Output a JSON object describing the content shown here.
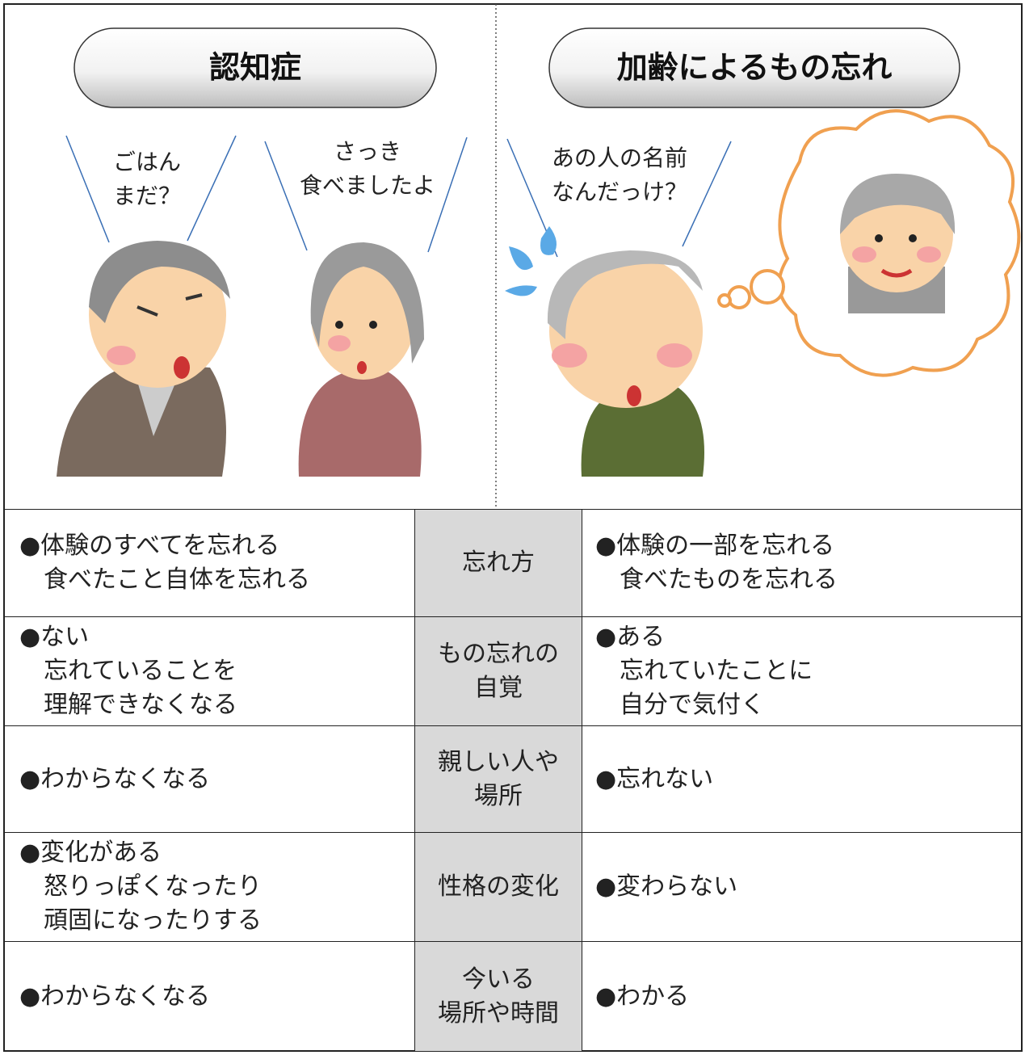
{
  "header": {
    "left_title": "認知症",
    "right_title": "加齢によるもの忘れ"
  },
  "speech": {
    "left_1": [
      "ごはん",
      "まだ？"
    ],
    "left_2": [
      "さっき",
      "食べましたよ"
    ],
    "right": [
      "あの人の名前",
      "なんだっけ？"
    ]
  },
  "table": {
    "rows": [
      {
        "left": [
          "●体験のすべてを忘れる",
          "　食べたこと自体を忘れる"
        ],
        "label": [
          "忘れ方"
        ],
        "right": [
          "●体験の一部を忘れる",
          "　食べたものを忘れる"
        ]
      },
      {
        "left": [
          "●ない",
          "　忘れていることを",
          "　理解できなくなる"
        ],
        "label": [
          "もの忘れの",
          "自覚"
        ],
        "right": [
          "●ある",
          "　忘れていたことに",
          "　自分で気付く"
        ]
      },
      {
        "left": [
          "●わからなくなる"
        ],
        "label": [
          "親しい人や",
          "場所"
        ],
        "right": [
          "●忘れない"
        ]
      },
      {
        "left": [
          "●変化がある",
          "　怒りっぽくなったり",
          "　頑固になったりする"
        ],
        "label": [
          "性格の変化"
        ],
        "right": [
          "●変わらない"
        ]
      },
      {
        "left": [
          "●わからなくなる"
        ],
        "label": [
          "今いる",
          "場所や時間"
        ],
        "right": [
          "●わかる"
        ]
      }
    ]
  }
}
